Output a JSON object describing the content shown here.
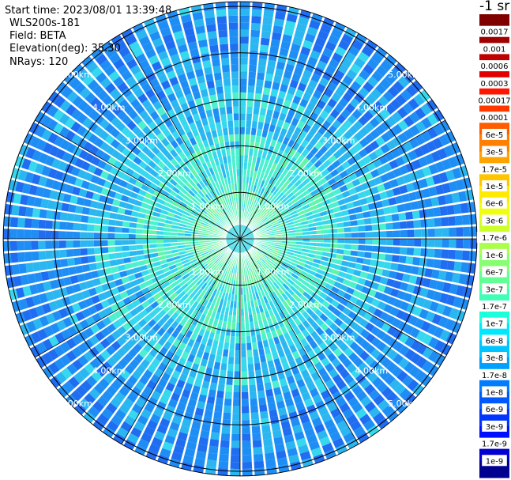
{
  "header": {
    "start_time": "Start time: 2023/08/01 13:39:48",
    "instrument": "WLS200s-181",
    "field": "Field: BETA",
    "elevation": "Elevation(deg): 35.30",
    "nrays": "NRays: 120"
  },
  "colorbar": {
    "unit": "-1 sr",
    "tick_labels": [
      "0.0017",
      "0.001",
      "0.0006",
      "0.0003",
      "0.00017",
      "0.0001",
      "6e-5",
      "3e-5",
      "1.7e-5",
      "1e-5",
      "6e-6",
      "3e-6",
      "1.7e-6",
      "1e-6",
      "6e-7",
      "3e-7",
      "1.7e-7",
      "1e-7",
      "6e-8",
      "3e-8",
      "1.7e-8",
      "1e-8",
      "6e-9",
      "3e-9",
      "1.7e-9",
      "1e-9"
    ],
    "colors": [
      "#800000",
      "#9e0000",
      "#c00000",
      "#e00000",
      "#ff1500",
      "#ff3800",
      "#ff5c00",
      "#ff8000",
      "#ffa300",
      "#ffc600",
      "#ffea00",
      "#f0ff0f",
      "#cdff2a",
      "#aaff4d",
      "#86ff70",
      "#62ff94",
      "#3fffb7",
      "#1cffdb",
      "#00e8ff",
      "#00c4ff",
      "#00a0ff",
      "#007cff",
      "#0058ff",
      "#0034ff",
      "#0010ff",
      "#0000d0",
      "#000090"
    ]
  },
  "chart_data": {
    "type": "heatmap",
    "projection": "polar (PPI scan)",
    "rays": 120,
    "range_ring_labels": [
      "1.00km",
      "2.00km",
      "3.00km",
      "4.00km",
      "5.00km"
    ],
    "range_rings_km": [
      1,
      2,
      3,
      4,
      5
    ],
    "max_range_km": 5.1,
    "spokes_deg": [
      0,
      30,
      60,
      90,
      120,
      150,
      180,
      210,
      240,
      270,
      300,
      330
    ],
    "field": "BETA",
    "value_trend": "highest near center (about 1.7e-7 to 1e-6), decreasing outward to about 1e-8 to 3e-8 at far range"
  }
}
